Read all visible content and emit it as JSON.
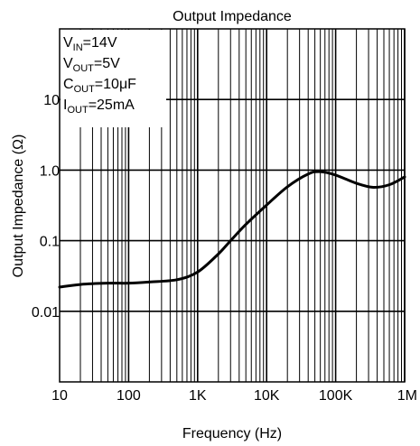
{
  "chart_data": {
    "type": "line",
    "title": "Output Impedance",
    "xlabel": "Frequency (Hz)",
    "ylabel": "Output Impedance (Ω)",
    "x_scale": "log",
    "y_scale": "log",
    "xlim": [
      10,
      1000000
    ],
    "ylim": [
      0.001,
      100
    ],
    "grid": true,
    "x_ticks": [
      {
        "value": 10,
        "label": "10"
      },
      {
        "value": 100,
        "label": "100"
      },
      {
        "value": 1000,
        "label": "1K"
      },
      {
        "value": 10000,
        "label": "10K"
      },
      {
        "value": 100000,
        "label": "100K"
      },
      {
        "value": 1000000,
        "label": "1M"
      }
    ],
    "y_ticks": [
      {
        "value": 0.01,
        "label": "0.01"
      },
      {
        "value": 0.1,
        "label": "0.1"
      },
      {
        "value": 1,
        "label": "1.0"
      },
      {
        "value": 10,
        "label": "10"
      }
    ],
    "annotations": [
      {
        "base": "V",
        "sub": "IN",
        "rest": "=14V"
      },
      {
        "base": "V",
        "sub": "OUT",
        "rest": "=5V"
      },
      {
        "base": "C",
        "sub": "OUT",
        "rest": "=10μF"
      },
      {
        "base": "I",
        "sub": "OUT",
        "rest": "=25mA"
      }
    ],
    "series": [
      {
        "x": [
          10,
          20,
          50,
          100,
          200,
          500,
          1000,
          2000,
          3000,
          5000,
          10000,
          20000,
          40000,
          60000,
          100000,
          200000,
          350000,
          600000,
          1000000
        ],
        "y": [
          0.022,
          0.024,
          0.025,
          0.025,
          0.026,
          0.028,
          0.036,
          0.065,
          0.1,
          0.17,
          0.32,
          0.58,
          0.88,
          0.95,
          0.85,
          0.65,
          0.57,
          0.62,
          0.8
        ]
      }
    ]
  }
}
